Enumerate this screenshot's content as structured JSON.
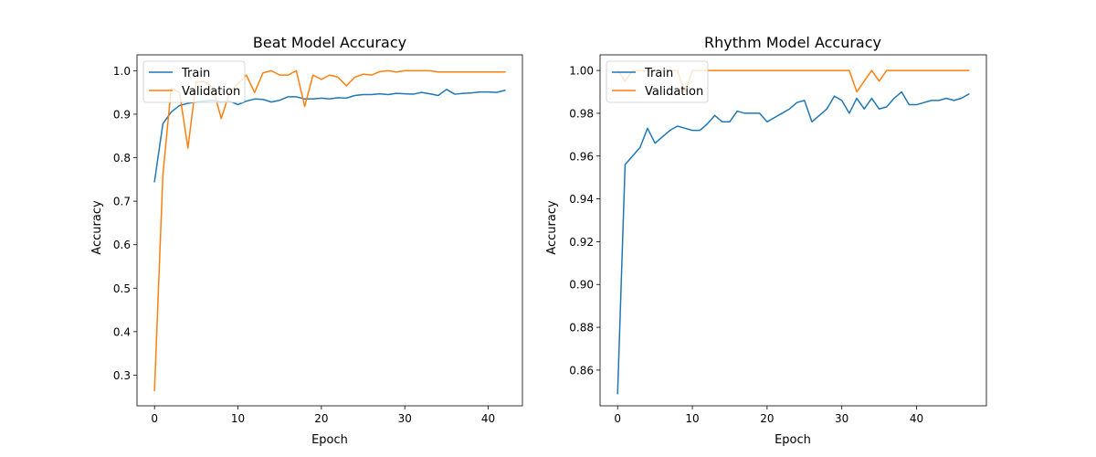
{
  "chart_data": [
    {
      "type": "line",
      "title": "Beat Model Accuracy",
      "xlabel": "Epoch",
      "ylabel": "Accuracy",
      "xlim": [
        -2.1,
        44.1
      ],
      "ylim": [
        0.2295,
        1.0365
      ],
      "xticks": [
        0,
        10,
        20,
        30,
        40
      ],
      "yticks": [
        0.3,
        0.4,
        0.5,
        0.6,
        0.7,
        0.8,
        0.9,
        1.0
      ],
      "ytick_decimals": 1,
      "legend_position": "upper left",
      "grid": false,
      "series": [
        {
          "name": "Train",
          "color": "#1f77b4",
          "x": [
            0,
            1,
            2,
            3,
            4,
            5,
            6,
            7,
            8,
            9,
            10,
            11,
            12,
            13,
            14,
            15,
            16,
            17,
            18,
            19,
            20,
            21,
            22,
            23,
            24,
            25,
            26,
            27,
            28,
            29,
            30,
            31,
            32,
            33,
            34,
            35,
            36,
            37,
            38,
            39,
            40,
            41,
            42
          ],
          "values": [
            0.745,
            0.878,
            0.905,
            0.92,
            0.925,
            0.928,
            0.93,
            0.932,
            0.928,
            0.93,
            0.922,
            0.93,
            0.935,
            0.934,
            0.928,
            0.932,
            0.94,
            0.94,
            0.935,
            0.935,
            0.937,
            0.935,
            0.938,
            0.937,
            0.943,
            0.945,
            0.945,
            0.947,
            0.945,
            0.948,
            0.947,
            0.946,
            0.95,
            0.947,
            0.943,
            0.957,
            0.946,
            0.948,
            0.949,
            0.951,
            0.951,
            0.95,
            0.955
          ]
        },
        {
          "name": "Validation",
          "color": "#ff7f0e",
          "x": [
            0,
            1,
            2,
            3,
            4,
            5,
            6,
            7,
            8,
            9,
            10,
            11,
            12,
            13,
            14,
            15,
            16,
            17,
            18,
            19,
            20,
            21,
            22,
            23,
            24,
            25,
            26,
            27,
            28,
            29,
            30,
            31,
            32,
            33,
            34,
            35,
            36,
            37,
            38,
            39,
            40,
            41,
            42
          ],
          "values": [
            0.265,
            0.76,
            0.96,
            0.95,
            0.822,
            0.975,
            0.975,
            0.96,
            0.89,
            0.95,
            0.97,
            0.99,
            0.95,
            0.995,
            1.0,
            0.99,
            0.99,
            1.0,
            0.918,
            0.99,
            0.98,
            0.99,
            0.985,
            0.965,
            0.985,
            0.992,
            0.99,
            0.998,
            1.0,
            0.997,
            1.0,
            1.0,
            1.0,
            1.0,
            0.997,
            0.997,
            0.997,
            0.997,
            0.997,
            0.997,
            0.997,
            0.997,
            0.997
          ]
        }
      ]
    },
    {
      "type": "line",
      "title": "Rhythm Model Accuracy",
      "xlabel": "Epoch",
      "ylabel": "Accuracy",
      "xlim": [
        -2.35,
        49.35
      ],
      "ylim": [
        0.8433,
        1.0073
      ],
      "xticks": [
        0,
        10,
        20,
        30,
        40
      ],
      "yticks": [
        0.86,
        0.88,
        0.9,
        0.92,
        0.94,
        0.96,
        0.98,
        1.0
      ],
      "ytick_decimals": 2,
      "legend_position": "upper left",
      "grid": false,
      "series": [
        {
          "name": "Train",
          "color": "#1f77b4",
          "x": [
            0,
            1,
            2,
            3,
            4,
            5,
            6,
            7,
            8,
            9,
            10,
            11,
            12,
            13,
            14,
            15,
            16,
            17,
            18,
            19,
            20,
            21,
            22,
            23,
            24,
            25,
            26,
            27,
            28,
            29,
            30,
            31,
            32,
            33,
            34,
            35,
            36,
            37,
            38,
            39,
            40,
            41,
            42,
            43,
            44,
            45,
            46,
            47
          ],
          "values": [
            0.849,
            0.956,
            0.96,
            0.964,
            0.973,
            0.966,
            0.969,
            0.972,
            0.974,
            0.973,
            0.972,
            0.972,
            0.975,
            0.979,
            0.976,
            0.976,
            0.981,
            0.98,
            0.98,
            0.98,
            0.976,
            0.978,
            0.98,
            0.982,
            0.985,
            0.986,
            0.976,
            0.979,
            0.982,
            0.988,
            0.986,
            0.98,
            0.987,
            0.982,
            0.987,
            0.982,
            0.983,
            0.987,
            0.99,
            0.984,
            0.984,
            0.985,
            0.986,
            0.986,
            0.987,
            0.986,
            0.987,
            0.989
          ]
        },
        {
          "name": "Validation",
          "color": "#ff7f0e",
          "x": [
            0,
            1,
            2,
            3,
            4,
            5,
            6,
            7,
            8,
            9,
            10,
            11,
            12,
            13,
            14,
            15,
            16,
            17,
            18,
            19,
            20,
            21,
            22,
            23,
            24,
            25,
            26,
            27,
            28,
            29,
            30,
            31,
            32,
            33,
            34,
            35,
            36,
            37,
            38,
            39,
            40,
            41,
            42,
            43,
            44,
            45,
            46,
            47
          ],
          "values": [
            1.0,
            0.995,
            1.0,
            1.0,
            1.0,
            1.0,
            1.0,
            1.0,
            1.0,
            0.99,
            1.0,
            1.0,
            1.0,
            1.0,
            1.0,
            1.0,
            1.0,
            1.0,
            1.0,
            1.0,
            1.0,
            1.0,
            1.0,
            1.0,
            1.0,
            1.0,
            1.0,
            1.0,
            1.0,
            1.0,
            1.0,
            1.0,
            0.99,
            0.995,
            1.0,
            0.995,
            1.0,
            1.0,
            1.0,
            1.0,
            1.0,
            1.0,
            1.0,
            1.0,
            1.0,
            1.0,
            1.0,
            1.0
          ]
        }
      ]
    }
  ]
}
